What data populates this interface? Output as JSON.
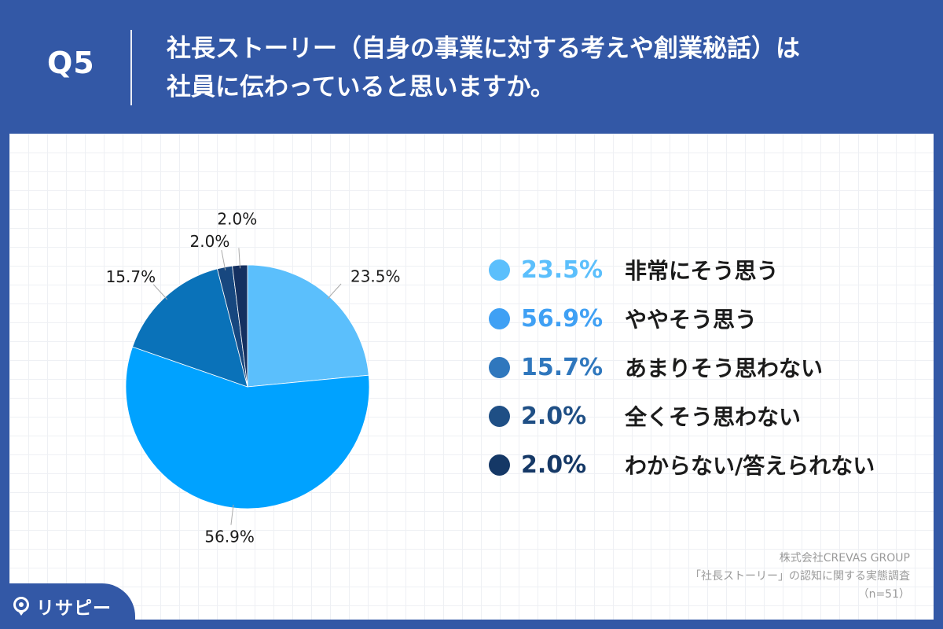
{
  "header": {
    "question_number": "Q5",
    "title_line1": "社長ストーリー（自身の事業に対する考えや創業秘話）は",
    "title_line2": "社員に伝わっていると思いますか。"
  },
  "colors": {
    "header_background": "#3358a6",
    "slice_1": "#5bbffc",
    "slice_2": "#00a2ff",
    "slice_3": "#0a72b9",
    "slice_4": "#17477f",
    "slice_5": "#143060",
    "legend_dot_1": "#5bbffc",
    "legend_dot_2": "#3fa0f4",
    "legend_dot_3": "#2f77bd",
    "legend_dot_4": "#1f4f85",
    "legend_dot_5": "#153866",
    "legend_text_1": "#5bbffc",
    "legend_text_2": "#3fa0f4",
    "legend_text_3": "#2f77bd",
    "legend_text_4": "#1f4f85",
    "legend_text_5": "#153866"
  },
  "chart_data": {
    "type": "pie",
    "categories": [
      "非常にそう思う",
      "ややそう思う",
      "あまりそう思わない",
      "全くそう思わない",
      "わからない/答えられない"
    ],
    "values": [
      23.5,
      56.9,
      15.7,
      2.0,
      2.0
    ],
    "data_labels": [
      "23.5%",
      "56.9%",
      "15.7%",
      "2.0%",
      "2.0%"
    ],
    "start": "12 o'clock, clockwise",
    "legend_position": "right"
  },
  "legend": [
    {
      "pct": "23.5%",
      "label": "非常にそう思う"
    },
    {
      "pct": "56.9%",
      "label": "ややそう思う"
    },
    {
      "pct": "15.7%",
      "label": "あまりそう思わない"
    },
    {
      "pct": "2.0%",
      "label": "全くそう思わない"
    },
    {
      "pct": "2.0%",
      "label": "わからない/答えられない"
    }
  ],
  "source": {
    "company": "株式会社CREVAS GROUP",
    "survey": "「社長ストーリー」の認知に関する実態調査",
    "sample": "（n=51）"
  },
  "logo": {
    "text": "リサピー",
    "icon": "pin-logo-icon"
  }
}
